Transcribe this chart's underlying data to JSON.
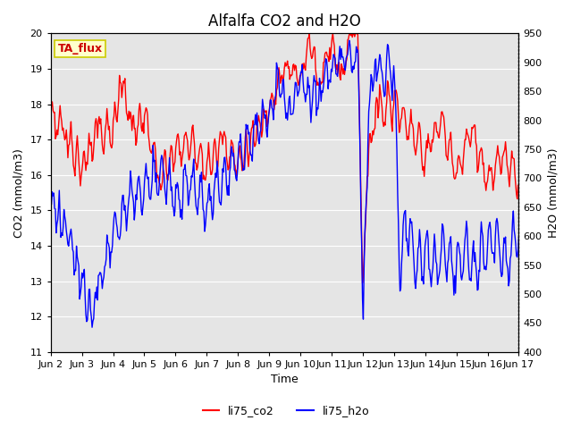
{
  "title": "Alfalfa CO2 and H2O",
  "xlabel": "Time",
  "ylabel_left": "CO2 (mmol/m3)",
  "ylabel_right": "H2O (mmol/m3)",
  "legend_label_co2": "li75_co2",
  "legend_label_h2o": "li75_h2o",
  "text_box_label": "TA_flux",
  "co2_color": "#ff0000",
  "h2o_color": "#0000ff",
  "ylim_left": [
    11.0,
    20.0
  ],
  "ylim_right": [
    400,
    950
  ],
  "yticks_left": [
    11.0,
    12.0,
    13.0,
    14.0,
    15.0,
    16.0,
    17.0,
    18.0,
    19.0,
    20.0
  ],
  "yticks_right": [
    400,
    450,
    500,
    550,
    600,
    650,
    700,
    750,
    800,
    850,
    900,
    950
  ],
  "xtick_labels": [
    "Jun 2",
    "Jun 3",
    "Jun 4",
    "Jun 5",
    "Jun 6",
    "Jun 7",
    "Jun 8",
    "Jun 9",
    "Jun 10",
    "Jun 11",
    "Jun 12",
    "Jun 13",
    "Jun 14",
    "Jun 15",
    "Jun 16",
    "Jun 17"
  ],
  "background_color": "#ffffff",
  "plot_bg_color": "#e5e5e5",
  "grid_color": "#ffffff",
  "title_fontsize": 12,
  "label_fontsize": 9,
  "tick_fontsize": 8,
  "legend_fontsize": 9,
  "line_width": 1.0,
  "figsize": [
    6.4,
    4.8
  ],
  "dpi": 100
}
